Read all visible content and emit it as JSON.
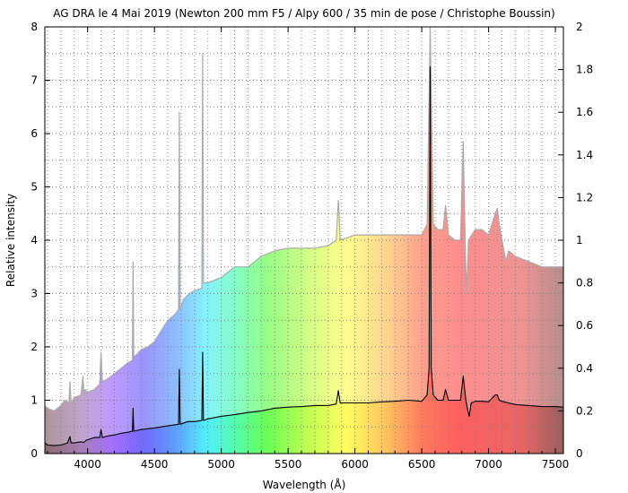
{
  "chart_data": {
    "type": "line",
    "title": "AG DRA le 4 Mai 2019 (Newton 200 mm F5 / Alpy 600 / 35 min de pose / Christophe Boussin)",
    "xlabel": "Wavelength (Å)",
    "ylabel": "Relative intensity",
    "xlim": [
      3680,
      7560
    ],
    "ylim": [
      0,
      8
    ],
    "y2lim": [
      0,
      2
    ],
    "x_ticks": [
      4000,
      4500,
      5000,
      5500,
      6000,
      6500,
      7000,
      7500
    ],
    "y_ticks": [
      0,
      1,
      2,
      3,
      4,
      5,
      6,
      7,
      8
    ],
    "y2_ticks": [
      0,
      0.2,
      0.4,
      0.6,
      0.8,
      1,
      1.2,
      1.4,
      1.6,
      1.8,
      2
    ],
    "y2_tick_labels": [
      "0",
      "0.2",
      "0.4",
      "0.6",
      "0.8",
      "1",
      "1.2",
      "1.4",
      "1.6",
      "1.8",
      "2"
    ],
    "grid": true,
    "legend": "none",
    "series": [
      {
        "axis": "left",
        "color": "#aaaaaa",
        "fill": "spectrum",
        "x": [
          3680,
          3700,
          3750,
          3800,
          3830,
          3860,
          3868,
          3876,
          3900,
          3950,
          3965,
          3972,
          3980,
          4000,
          4050,
          4090,
          4100,
          4110,
          4150,
          4200,
          4250,
          4300,
          4335,
          4340,
          4345,
          4400,
          4450,
          4500,
          4550,
          4600,
          4650,
          4680,
          4686,
          4692,
          4720,
          4760,
          4800,
          4855,
          4861,
          4867,
          4900,
          5000,
          5100,
          5200,
          5300,
          5400,
          5500,
          5600,
          5700,
          5800,
          5860,
          5876,
          5890,
          5950,
          6000,
          6100,
          6200,
          6300,
          6400,
          6500,
          6540,
          6563,
          6586,
          6620,
          6660,
          6678,
          6700,
          6750,
          6790,
          6810,
          6825,
          6835,
          6850,
          6900,
          6950,
          7000,
          7050,
          7065,
          7080,
          7130,
          7150,
          7200,
          7300,
          7400,
          7500,
          7560
        ],
        "values": [
          0.9,
          0.85,
          0.8,
          0.9,
          1.0,
          0.95,
          1.35,
          0.95,
          1.05,
          1.1,
          1.45,
          1.1,
          1.2,
          1.15,
          1.2,
          1.3,
          1.9,
          1.35,
          1.4,
          1.5,
          1.6,
          1.7,
          1.75,
          3.6,
          1.8,
          1.95,
          2.0,
          2.1,
          2.3,
          2.5,
          2.6,
          2.7,
          6.4,
          2.7,
          2.9,
          3.0,
          3.05,
          3.1,
          7.5,
          3.2,
          3.2,
          3.3,
          3.5,
          3.5,
          3.7,
          3.8,
          3.85,
          3.85,
          3.85,
          3.9,
          4.0,
          4.75,
          4.0,
          4.05,
          4.1,
          4.1,
          4.1,
          4.1,
          4.1,
          4.1,
          4.3,
          8.0,
          4.3,
          4.2,
          4.2,
          4.65,
          4.1,
          4.0,
          4.0,
          5.85,
          4.0,
          3.0,
          4.0,
          4.2,
          4.2,
          4.1,
          4.5,
          4.6,
          4.3,
          3.6,
          3.8,
          3.7,
          3.6,
          3.5,
          3.5,
          3.5
        ]
      },
      {
        "axis": "left",
        "color": "#000000",
        "fill": "none",
        "x": [
          3680,
          3700,
          3750,
          3800,
          3850,
          3868,
          3876,
          3900,
          3950,
          3970,
          3990,
          4050,
          4090,
          4100,
          4110,
          4150,
          4200,
          4250,
          4300,
          4335,
          4340,
          4345,
          4400,
          4500,
          4600,
          4680,
          4686,
          4692,
          4750,
          4800,
          4855,
          4861,
          4867,
          4900,
          5000,
          5100,
          5200,
          5300,
          5400,
          5500,
          5600,
          5700,
          5800,
          5860,
          5876,
          5890,
          5950,
          6000,
          6100,
          6200,
          6300,
          6400,
          6500,
          6540,
          6555,
          6563,
          6571,
          6586,
          6620,
          6660,
          6678,
          6700,
          6750,
          6790,
          6810,
          6830,
          6845,
          6855,
          6870,
          6900,
          6950,
          7000,
          7050,
          7065,
          7080,
          7100,
          7150,
          7200,
          7300,
          7400,
          7500,
          7560
        ],
        "values": [
          0.2,
          0.16,
          0.15,
          0.16,
          0.2,
          0.32,
          0.2,
          0.2,
          0.22,
          0.21,
          0.25,
          0.3,
          0.3,
          0.45,
          0.3,
          0.33,
          0.35,
          0.38,
          0.4,
          0.42,
          0.85,
          0.42,
          0.45,
          0.48,
          0.52,
          0.55,
          1.58,
          0.55,
          0.6,
          0.6,
          0.62,
          1.9,
          0.62,
          0.65,
          0.7,
          0.73,
          0.77,
          0.8,
          0.85,
          0.87,
          0.88,
          0.9,
          0.9,
          0.93,
          1.18,
          0.95,
          0.95,
          0.95,
          0.95,
          0.97,
          0.98,
          1.0,
          0.98,
          1.1,
          1.6,
          7.25,
          1.6,
          1.1,
          1.0,
          1.0,
          1.2,
          1.0,
          1.0,
          1.0,
          1.45,
          1.0,
          0.8,
          0.7,
          0.95,
          0.98,
          0.98,
          0.97,
          1.1,
          1.1,
          1.0,
          0.98,
          0.95,
          0.92,
          0.9,
          0.88,
          0.88,
          0.87
        ]
      }
    ]
  }
}
